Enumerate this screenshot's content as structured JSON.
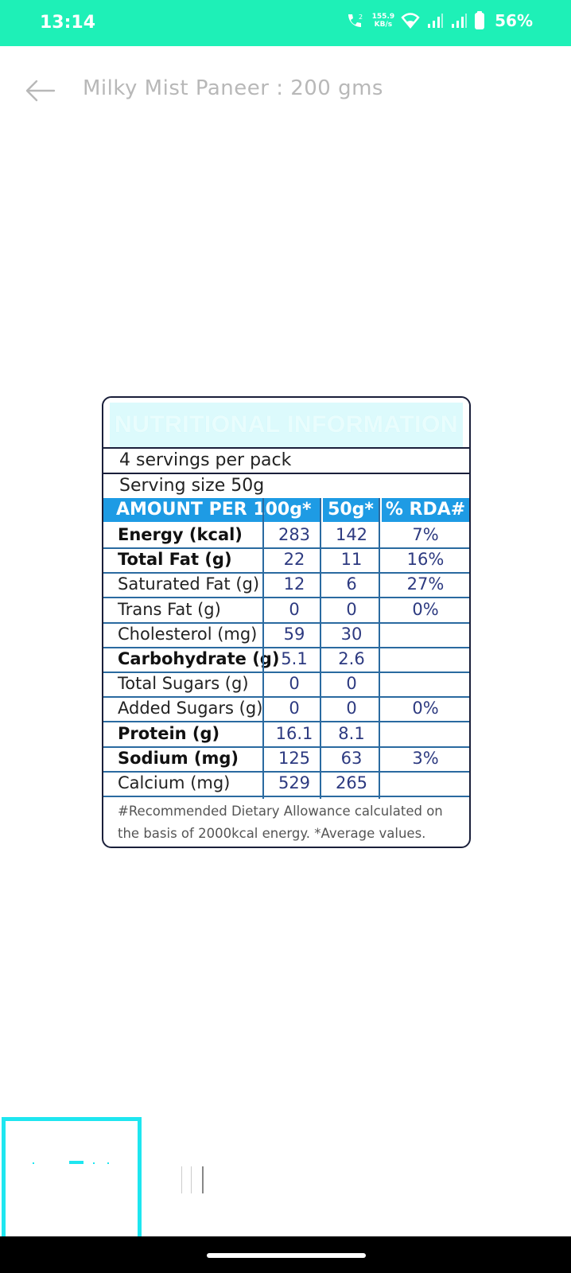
{
  "status_bar": {
    "time": "13:14",
    "network_speed_value": "155.9",
    "network_speed_unit": "KB/s",
    "battery": "56%",
    "background": "#1ef0b7",
    "icons": [
      "volte-call-icon",
      "wifi-icon",
      "signal-icon",
      "signal-icon",
      "battery-icon"
    ]
  },
  "header": {
    "back_icon": "back-arrow-icon",
    "title": "Milky Mist Paneer : 200 gms"
  },
  "nutrition_label": {
    "title": "NUTRITIONAL INFORMATION",
    "servings": "4 servings per pack",
    "serving_size": "Serving size 50g",
    "columns": [
      "AMOUNT PER 100g*",
      "50g*",
      "% RDA#"
    ],
    "rows": [
      {
        "nutrient": "Energy (kcal)",
        "per100": "283",
        "per50": "142",
        "rda": "7%",
        "bold": true
      },
      {
        "nutrient": "Total Fat (g)",
        "per100": "22",
        "per50": "11",
        "rda": "16%",
        "bold": true
      },
      {
        "nutrient": "Saturated Fat (g)",
        "per100": "12",
        "per50": "6",
        "rda": "27%",
        "bold": false
      },
      {
        "nutrient": "Trans Fat (g)",
        "per100": "0",
        "per50": "0",
        "rda": "0%",
        "bold": false
      },
      {
        "nutrient": "Cholesterol (mg)",
        "per100": "59",
        "per50": "30",
        "rda": "",
        "bold": false
      },
      {
        "nutrient": "Carbohydrate (g)",
        "per100": "5.1",
        "per50": "2.6",
        "rda": "",
        "bold": true
      },
      {
        "nutrient": "Total Sugars (g)",
        "per100": "0",
        "per50": "0",
        "rda": "",
        "bold": false
      },
      {
        "nutrient": "Added Sugars (g)",
        "per100": "0",
        "per50": "0",
        "rda": "0%",
        "bold": false
      },
      {
        "nutrient": "Protein (g)",
        "per100": "16.1",
        "per50": "8.1",
        "rda": "",
        "bold": true
      },
      {
        "nutrient": "Sodium (mg)",
        "per100": "125",
        "per50": "63",
        "rda": "3%",
        "bold": true
      },
      {
        "nutrient": "Calcium (mg)",
        "per100": "529",
        "per50": "265",
        "rda": "",
        "bold": false
      }
    ],
    "footnote": "#Recommended Dietary Allowance calculated on the basis of 2000kcal energy. *Average values."
  },
  "colors": {
    "accent": "#1ef0b7",
    "label_header_blue": "#1e9be4",
    "thumbnail_border": "#1ee6f0"
  }
}
